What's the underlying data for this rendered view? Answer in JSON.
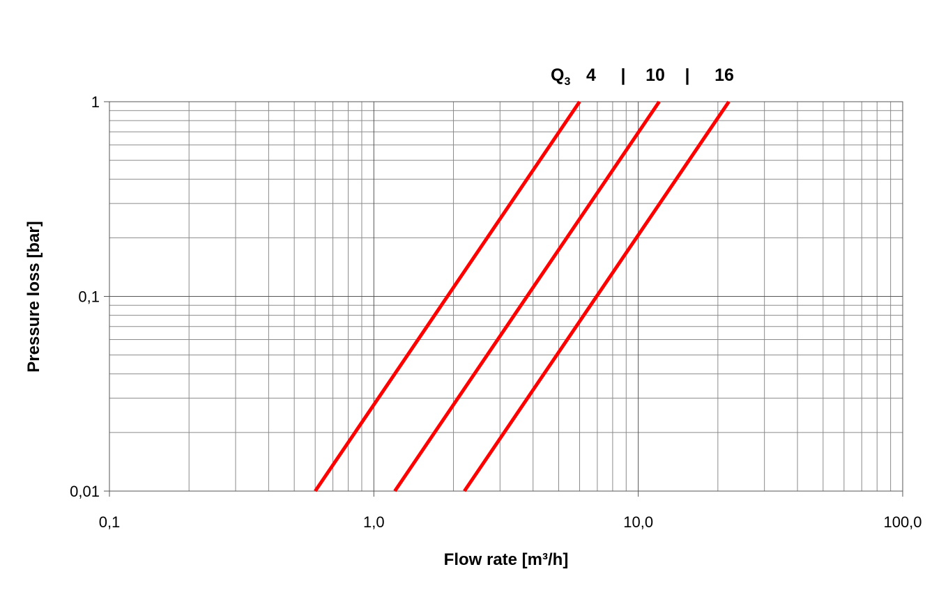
{
  "chart_data": {
    "type": "line",
    "xlabel": "Flow rate [m³/h]",
    "ylabel": "Pressure loss [bar]",
    "x_scale": "log",
    "y_scale": "log",
    "xlim": [
      0.1,
      100
    ],
    "ylim": [
      0.01,
      1
    ],
    "x_tick_labels": [
      "0,1",
      "1,0",
      "10,0",
      "100,0"
    ],
    "y_tick_labels": [
      "0,01",
      "0,1",
      "1"
    ],
    "grid": true,
    "series_header": {
      "symbol": "Q",
      "subscript": "3",
      "labels": [
        "4",
        "10",
        "16"
      ],
      "separator": "|"
    },
    "series": [
      {
        "name": "4",
        "color": "#ff0000",
        "x": [
          0.6,
          6.0
        ],
        "y": [
          0.01,
          1
        ]
      },
      {
        "name": "10",
        "color": "#ff0000",
        "x": [
          1.2,
          12.0
        ],
        "y": [
          0.01,
          1
        ]
      },
      {
        "name": "16",
        "color": "#ff0000",
        "x": [
          2.2,
          22.0
        ],
        "y": [
          0.01,
          1
        ]
      }
    ]
  }
}
